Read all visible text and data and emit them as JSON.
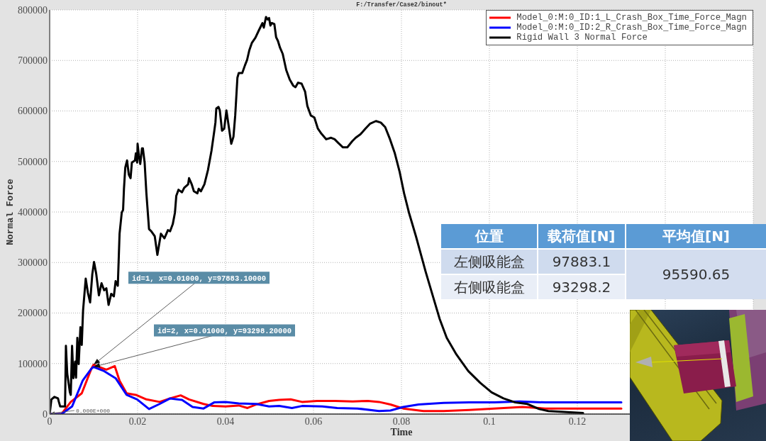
{
  "chart_data": [
    {
      "type": "line",
      "title": "F:/Transfer/Case2/binout*",
      "xlabel": "Time",
      "ylabel": "Normal Force",
      "series": [
        {
          "name": "Model_0:M:0_ID:1_L_Crash_Box_Time_Force_Magn",
          "color": "#ff0000",
          "x": [
            0,
            0.0027,
            0.0048,
            0.0073,
            0.0095,
            0.01,
            0.0113,
            0.0129,
            0.0148,
            0.0159,
            0.0175,
            0.0196,
            0.022,
            0.025,
            0.0274,
            0.0298,
            0.0317,
            0.035,
            0.0371,
            0.04,
            0.043,
            0.045,
            0.047,
            0.0499,
            0.0522,
            0.0548,
            0.0574,
            0.0608,
            0.0649,
            0.0689,
            0.0724,
            0.0749,
            0.0775,
            0.0804,
            0.085,
            0.0896,
            0.0954,
            0.1011,
            0.1075,
            0.1127,
            0.1184,
            0.13
          ],
          "values": [
            0,
            0,
            24000,
            41000,
            90000,
            97883.1,
            93000,
            88000,
            95000,
            66000,
            41000,
            38000,
            29000,
            24000,
            31000,
            37000,
            29000,
            20000,
            16000,
            15000,
            17000,
            12000,
            19000,
            26000,
            28000,
            29000,
            24000,
            26000,
            26000,
            25000,
            26000,
            24000,
            19000,
            11000,
            6000,
            6000,
            8000,
            11000,
            14000,
            11000,
            11000,
            11000
          ]
        },
        {
          "name": "Model_0:M:0_ID:2_R_Crash_Box_Time_Force_Magn",
          "color": "#0000ff",
          "x": [
            0,
            0.0027,
            0.0051,
            0.0075,
            0.0095,
            0.01,
            0.0124,
            0.015,
            0.0175,
            0.0199,
            0.0226,
            0.025,
            0.0274,
            0.0301,
            0.0325,
            0.035,
            0.0374,
            0.04,
            0.043,
            0.047,
            0.0499,
            0.0522,
            0.0551,
            0.0574,
            0.062,
            0.0654,
            0.07,
            0.0749,
            0.0775,
            0.0804,
            0.0839,
            0.0896,
            0.0954,
            0.1011,
            0.1069,
            0.1127,
            0.1213,
            0.13
          ],
          "values": [
            0,
            0,
            15000,
            66000,
            90000,
            93298.2,
            85000,
            71000,
            38000,
            29000,
            10000,
            20000,
            31000,
            28000,
            14000,
            11000,
            23000,
            24000,
            21000,
            20000,
            15000,
            16000,
            12000,
            16000,
            15000,
            12000,
            11000,
            6000,
            7000,
            14000,
            19000,
            22000,
            23000,
            23000,
            25000,
            23000,
            23000,
            23000
          ]
        },
        {
          "name": "Rigid Wall 3 Normal Force",
          "color": "#000000",
          "x": [
            0,
            0.0004,
            0.0011,
            0.0019,
            0.0021,
            0.0024,
            0.0035,
            0.0037,
            0.004,
            0.0046,
            0.0048,
            0.0051,
            0.0054,
            0.0058,
            0.006,
            0.0063,
            0.0066,
            0.007,
            0.0073,
            0.0076,
            0.0082,
            0.0087,
            0.0092,
            0.0097,
            0.0101,
            0.0106,
            0.0112,
            0.0118,
            0.0124,
            0.0129,
            0.0134,
            0.014,
            0.0146,
            0.015,
            0.0155,
            0.0159,
            0.0164,
            0.0167,
            0.0169,
            0.0172,
            0.0176,
            0.018,
            0.0184,
            0.0187,
            0.0194,
            0.0196,
            0.0199,
            0.02,
            0.0203,
            0.0206,
            0.021,
            0.0212,
            0.0216,
            0.022,
            0.0226,
            0.0231,
            0.0239,
            0.0245,
            0.0253,
            0.0261,
            0.0269,
            0.0274,
            0.028,
            0.0285,
            0.0288,
            0.0293,
            0.0301,
            0.0306,
            0.0315,
            0.0317,
            0.0323,
            0.0328,
            0.0336,
            0.0339,
            0.0344,
            0.0352,
            0.036,
            0.0368,
            0.0374,
            0.0377,
            0.0379,
            0.0384,
            0.0387,
            0.0392,
            0.0397,
            0.0402,
            0.0406,
            0.0413,
            0.0418,
            0.0422,
            0.0427,
            0.043,
            0.0438,
            0.0444,
            0.0449,
            0.0454,
            0.046,
            0.0468,
            0.0476,
            0.0484,
            0.0487,
            0.0492,
            0.0496,
            0.0499,
            0.0502,
            0.0505,
            0.0511,
            0.0515,
            0.0519,
            0.0524,
            0.053,
            0.0538,
            0.0546,
            0.0554,
            0.0559,
            0.0565,
            0.0573,
            0.0581,
            0.0586,
            0.0594,
            0.0602,
            0.061,
            0.0618,
            0.0629,
            0.064,
            0.0648,
            0.0656,
            0.0667,
            0.0677,
            0.0688,
            0.0696,
            0.0707,
            0.0718,
            0.0729,
            0.0742,
            0.0753,
            0.0763,
            0.0774,
            0.0785,
            0.0796,
            0.0806,
            0.0817,
            0.0833,
            0.0855,
            0.0871,
            0.0887,
            0.0903,
            0.0925,
            0.0952,
            0.0979,
            0.1005,
            0.1032,
            0.1059,
            0.1086,
            0.1113,
            0.1134,
            0.1213
          ],
          "values": [
            0,
            29000,
            34000,
            31000,
            24000,
            15000,
            15000,
            135000,
            80000,
            43000,
            38000,
            135000,
            71000,
            104000,
            72000,
            151000,
            99000,
            172000,
            137000,
            205000,
            268000,
            240000,
            221000,
            277000,
            301000,
            277000,
            235000,
            259000,
            245000,
            249000,
            216000,
            238000,
            233000,
            263000,
            254000,
            357000,
            399000,
            404000,
            446000,
            488000,
            502000,
            474000,
            467000,
            498000,
            502000,
            516000,
            498000,
            535000,
            512000,
            495000,
            526000,
            526000,
            498000,
            437000,
            366000,
            362000,
            352000,
            315000,
            357000,
            348000,
            364000,
            362000,
            376000,
            399000,
            432000,
            444000,
            439000,
            448000,
            455000,
            467000,
            455000,
            441000,
            437000,
            446000,
            441000,
            455000,
            483000,
            521000,
            558000,
            577000,
            605000,
            608000,
            601000,
            561000,
            565000,
            601000,
            577000,
            535000,
            549000,
            591000,
            666000,
            675000,
            675000,
            690000,
            701000,
            720000,
            735000,
            745000,
            760000,
            774000,
            765000,
            786000,
            781000,
            784000,
            769000,
            774000,
            772000,
            746000,
            739000,
            725000,
            713000,
            681000,
            662000,
            650000,
            647000,
            656000,
            654000,
            638000,
            610000,
            591000,
            587000,
            565000,
            555000,
            544000,
            547000,
            544000,
            537000,
            528000,
            528000,
            540000,
            547000,
            554000,
            565000,
            575000,
            580000,
            577000,
            568000,
            544000,
            516000,
            479000,
            437000,
            399000,
            352000,
            282000,
            235000,
            188000,
            151000,
            118000,
            85000,
            62000,
            43000,
            31000,
            23000,
            20000,
            10000,
            6000,
            2000
          ]
        }
      ],
      "xlim": [
        0,
        0.16
      ],
      "xticks": [
        0,
        0.02,
        0.04,
        0.06,
        0.08,
        0.1,
        0.12,
        {
          "value": 0.14,
          "label": null
        }
      ],
      "ylim": [
        0,
        800000
      ],
      "yticks": [
        0,
        100000,
        200000,
        300000,
        400000,
        500000,
        600000,
        700000,
        800000
      ],
      "grid": true,
      "legend": "top right",
      "annotations": [
        {
          "text": "id=1, x=0.01000, y=97883.10000",
          "x": 0.01,
          "y": 97883.1
        },
        {
          "text": "id=2, x=0.01000, y=93298.20000",
          "x": 0.01,
          "y": 93298.2
        },
        "0.000E+000"
      ]
    },
    {
      "type": "other",
      "annotations": [
        "位置",
        "载荷值[N]",
        "平均值[N]",
        "左侧吸能盒",
        "97883.1",
        "95590.65",
        "右侧吸能盒",
        "93298.2"
      ]
    }
  ]
}
